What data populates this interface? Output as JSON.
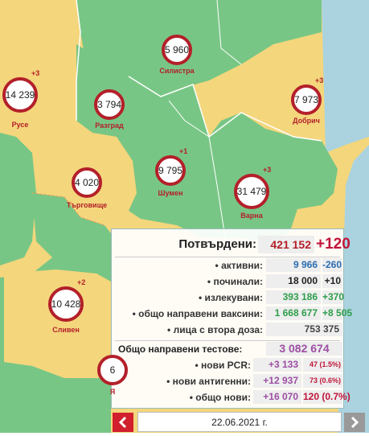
{
  "map": {
    "markers": [
      {
        "name": "Силистра",
        "value": "5 960"
      },
      {
        "name": "Русе",
        "value": "14 239",
        "change": "+3"
      },
      {
        "name": "Разград",
        "value": "3 794"
      },
      {
        "name": "Добрич",
        "value": "7 973",
        "change": "+3"
      },
      {
        "name": "Търговище",
        "value": "4 020"
      },
      {
        "name": "Шумен",
        "value": "9 795",
        "change": "+1"
      },
      {
        "name": "Варна",
        "value": "31 479",
        "change": "+3"
      },
      {
        "name": "Сливен",
        "value": "10 428",
        "change": "+2"
      },
      {
        "name": "Я",
        "value": "6"
      }
    ]
  },
  "panel": {
    "confirmed": {
      "label": "Потвърдени:",
      "value": "421 152",
      "change": "+120"
    },
    "rows": [
      {
        "label": "• активни:",
        "value": "9 966",
        "change": "-260"
      },
      {
        "label": "• починали:",
        "value": "18 000",
        "change": "+10"
      },
      {
        "label": "• излекувани:",
        "value": "393 186",
        "change": "+370"
      },
      {
        "label": "• общо направени ваксини:",
        "value": "1 668 677",
        "change": "+8 505"
      },
      {
        "label": "• лица с втора доза:",
        "value": "753 375"
      }
    ],
    "tests": {
      "label": "Общо направени тестове:",
      "value": "3 082 674"
    },
    "test_rows": [
      {
        "label": "• нови PCR:",
        "value": "+3 133",
        "share": "47 (1.5%)"
      },
      {
        "label": "• нови антигенни:",
        "value": "+12 937",
        "share": "73 (0.6%)"
      },
      {
        "label": "• общо нови:",
        "value": "+16 070",
        "share": "120 (0.7%)"
      }
    ]
  },
  "footer": {
    "date": "22.06.2021 г."
  }
}
